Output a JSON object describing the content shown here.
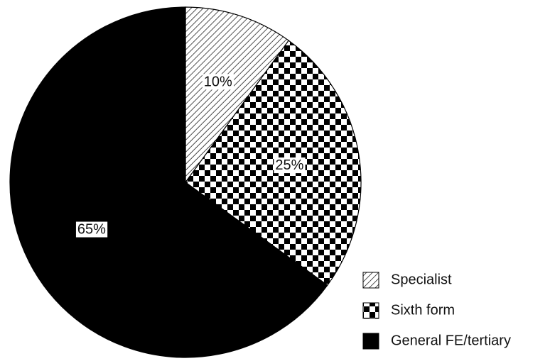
{
  "chart_data": {
    "type": "pie",
    "categories": [
      "Specialist",
      "Sixth form",
      "General FE/tertiary"
    ],
    "values": [
      10,
      25,
      65
    ],
    "value_labels": [
      "10%",
      "25%",
      "65%"
    ],
    "patterns": [
      "diagonal-hatch",
      "checkerboard",
      "solid-black"
    ],
    "legend": "bottom-right"
  }
}
